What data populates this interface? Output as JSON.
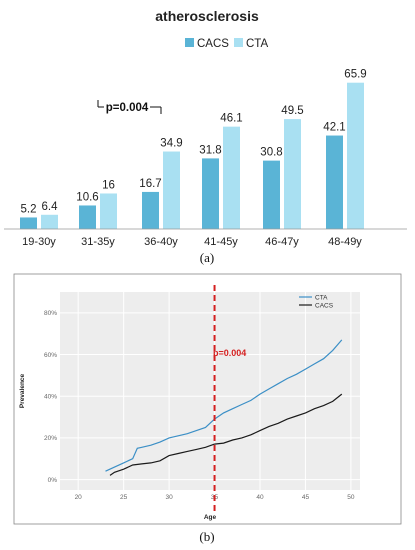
{
  "chart_data": [
    {
      "type": "bar",
      "title": "atherosclerosis",
      "categories": [
        "19-30y",
        "31-35y",
        "36-40y",
        "41-45y",
        "46-47y",
        "48-49y"
      ],
      "series": [
        {
          "name": "CACS",
          "values": [
            5.2,
            10.6,
            16.7,
            31.8,
            30.8,
            42.1
          ],
          "value_labels": [
            "5.2",
            "10.6",
            "16.7",
            "31.8",
            "30.8",
            "42.1"
          ],
          "color": "#5ab4d6"
        },
        {
          "name": "CTA",
          "values": [
            6.4,
            16,
            34.9,
            46.1,
            49.5,
            65.9
          ],
          "value_labels": [
            "6.4",
            "16",
            "34.9",
            "46.1",
            "49.5",
            "65.9"
          ],
          "color": "#a9e0f2"
        }
      ],
      "annotation": "p=0.004",
      "caption": "(a)",
      "legend_position": "top"
    },
    {
      "type": "line",
      "xlabel": "Age",
      "ylabel": "Prevalence",
      "xlim": [
        18,
        51
      ],
      "ylim": [
        -0.05,
        0.9
      ],
      "x_ticks": [
        20,
        25,
        30,
        35,
        40,
        45,
        50
      ],
      "x_tick_labels": [
        "20",
        "25",
        "30",
        "35",
        "40",
        "45",
        "50"
      ],
      "y_ticks": [
        0,
        0.2,
        0.4,
        0.6,
        0.8
      ],
      "y_tick_labels": [
        "0%",
        "20%",
        "40%",
        "60%",
        "80%"
      ],
      "grid": true,
      "legend_position": "top-right",
      "series": [
        {
          "name": "CTA",
          "color": "#3b8fc6",
          "x": [
            23,
            24,
            25,
            26,
            26.5,
            27,
            28,
            29,
            30,
            31,
            32,
            33,
            34,
            35,
            36,
            37,
            38,
            39,
            40,
            41,
            42,
            43,
            44,
            45,
            46,
            47,
            48,
            49
          ],
          "y": [
            0.04,
            0.06,
            0.08,
            0.1,
            0.15,
            0.155,
            0.165,
            0.18,
            0.2,
            0.21,
            0.22,
            0.235,
            0.25,
            0.29,
            0.32,
            0.34,
            0.36,
            0.38,
            0.41,
            0.435,
            0.46,
            0.485,
            0.505,
            0.53,
            0.555,
            0.58,
            0.62,
            0.67
          ]
        },
        {
          "name": "CACS",
          "color": "#1a1a1a",
          "x": [
            23.5,
            24,
            25,
            26,
            27,
            28,
            29,
            30,
            31,
            32,
            33,
            34,
            35,
            36,
            37,
            38,
            39,
            40,
            41,
            42,
            43,
            44,
            45,
            46,
            47,
            48,
            49
          ],
          "y": [
            0.02,
            0.035,
            0.05,
            0.07,
            0.075,
            0.08,
            0.09,
            0.115,
            0.125,
            0.135,
            0.145,
            0.155,
            0.17,
            0.175,
            0.19,
            0.2,
            0.215,
            0.235,
            0.255,
            0.27,
            0.29,
            0.305,
            0.32,
            0.34,
            0.355,
            0.375,
            0.41
          ]
        }
      ],
      "vline": {
        "x": 35,
        "color": "#d42020",
        "label": "p=0.004"
      },
      "caption": "(b)"
    }
  ]
}
